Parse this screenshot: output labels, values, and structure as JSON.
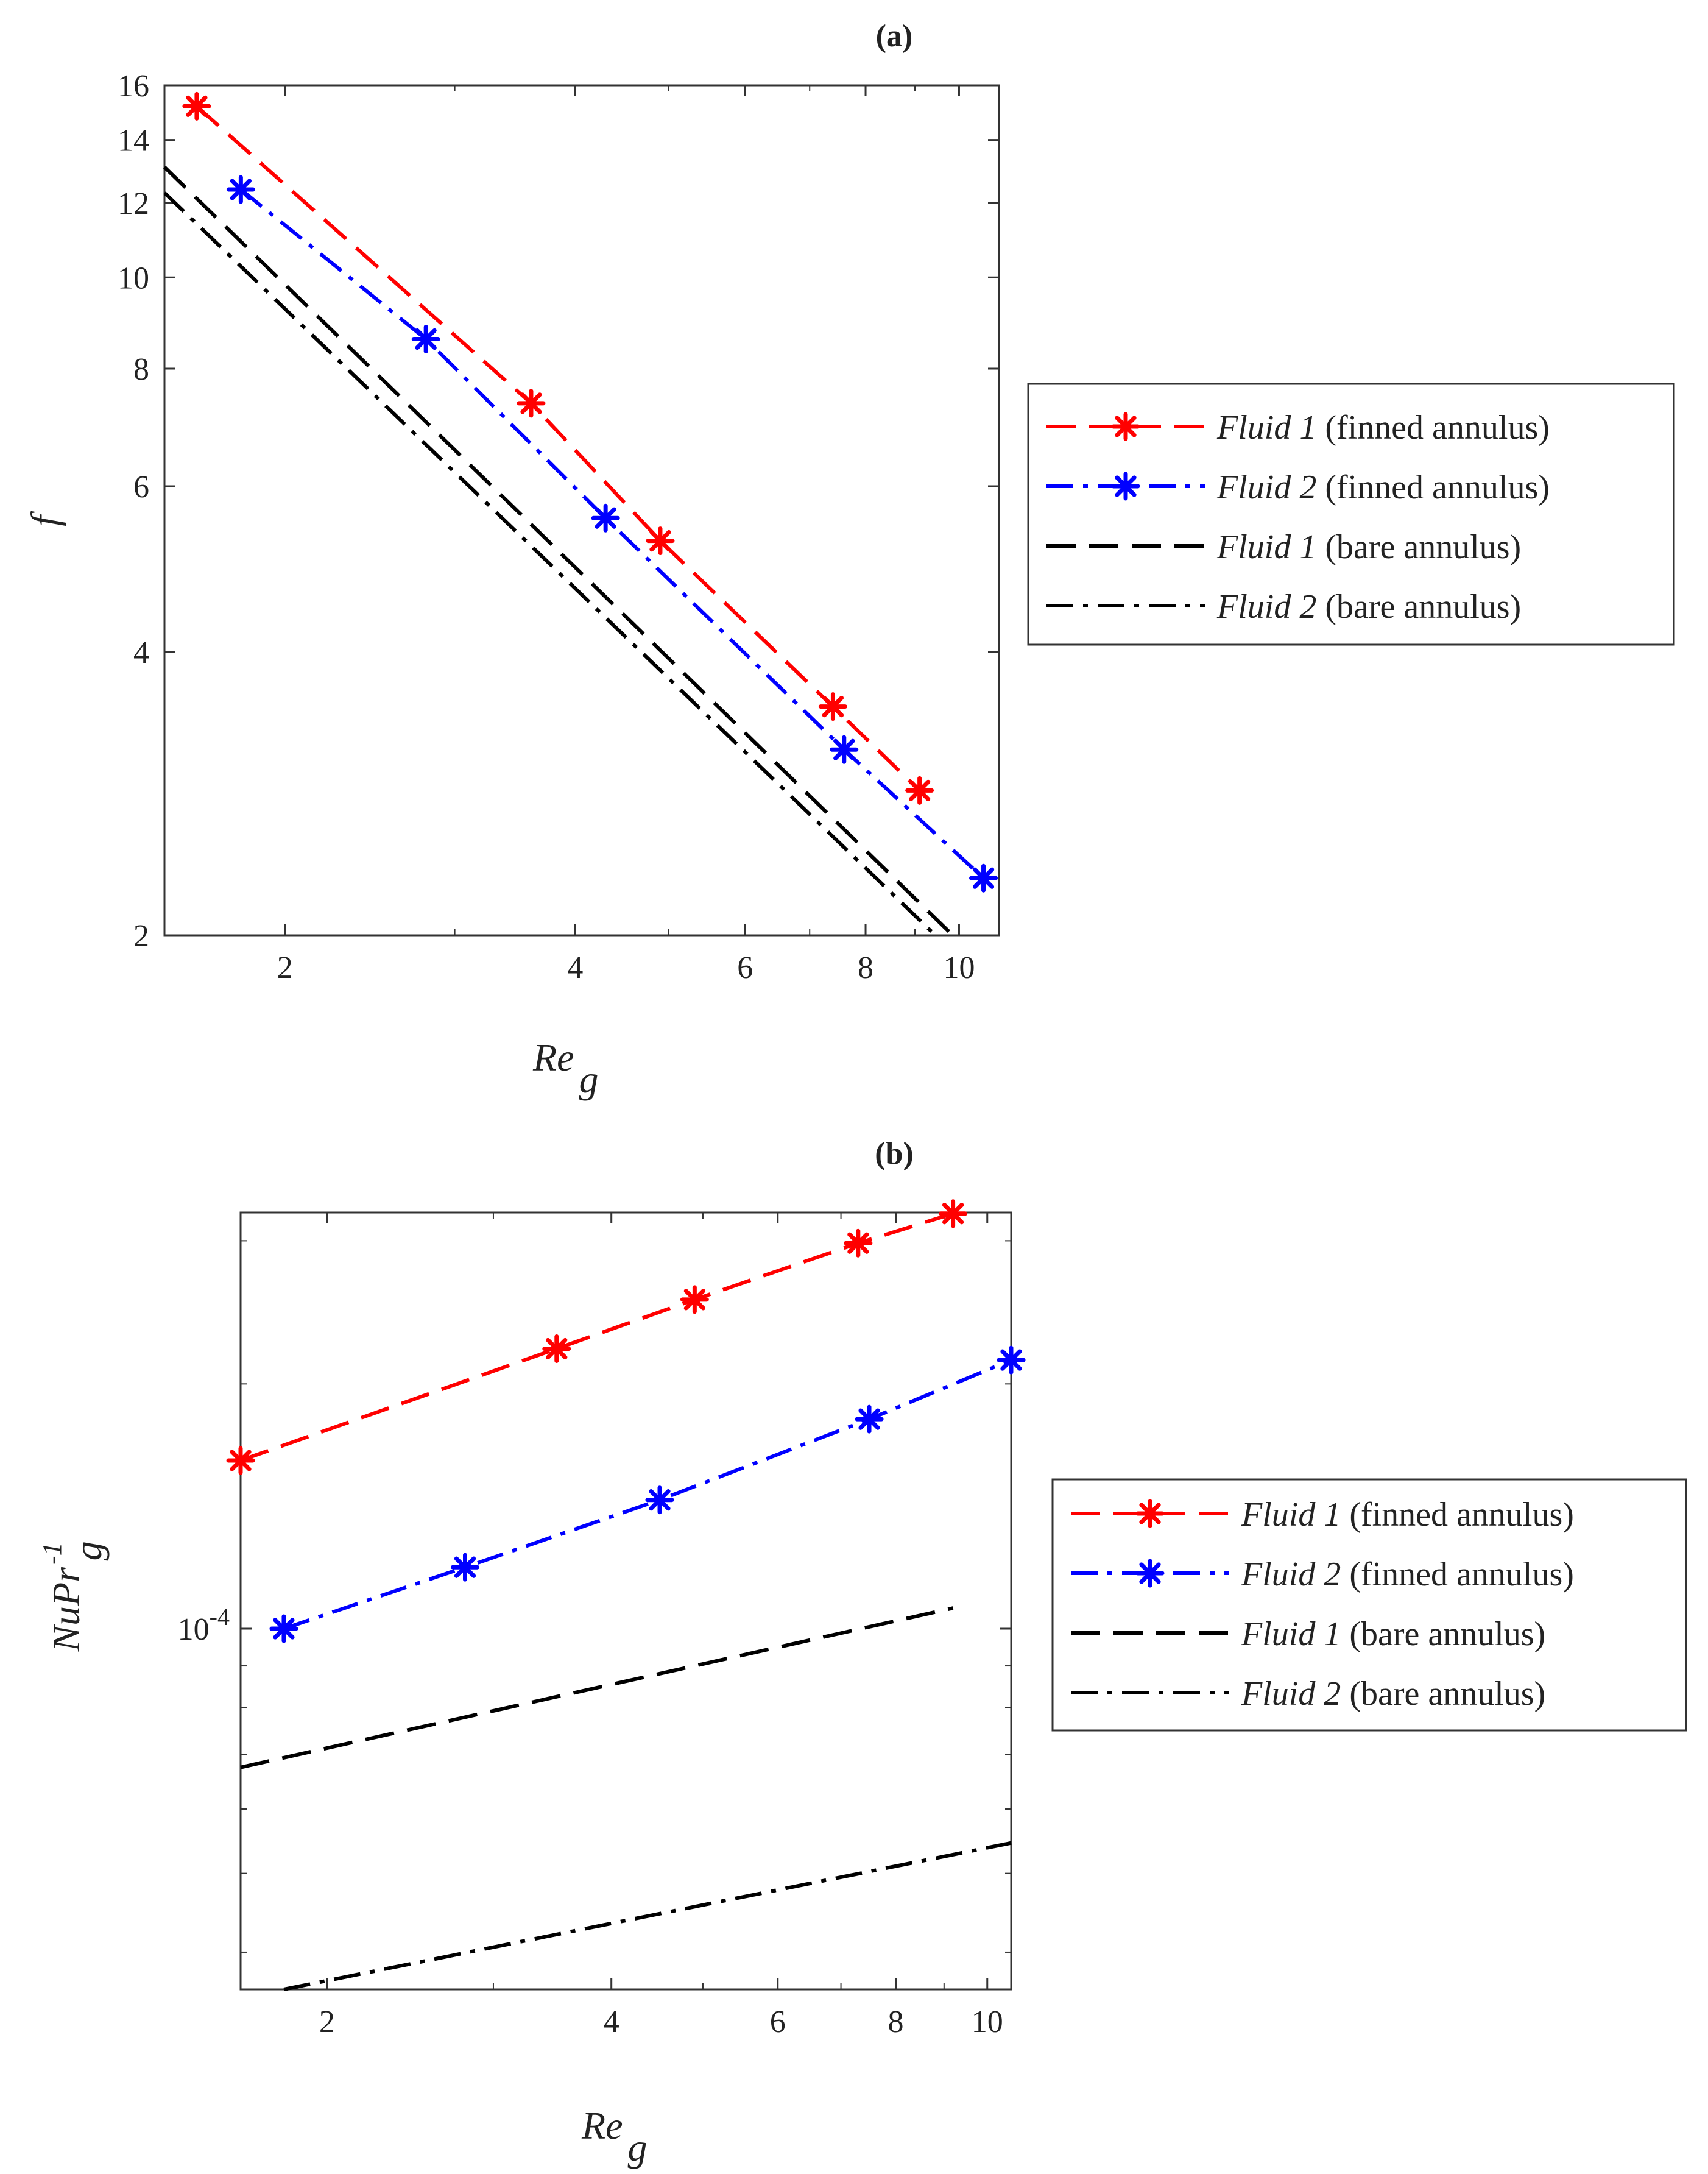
{
  "charts": [
    {
      "id": "a",
      "panel_label": "(a)",
      "ylabel": "f",
      "xlabel": {
        "base": "Re",
        "sub": "g"
      }
    },
    {
      "id": "b",
      "panel_label": "(b)",
      "ylabel": {
        "base": "NuPr",
        "sup": "-1",
        "sub": "g"
      },
      "xlabel": {
        "base": "Re",
        "sub": "g"
      }
    }
  ],
  "chart_data": [
    {
      "type": "line",
      "panel": "(a)",
      "title": "",
      "xlabel": "Re_g",
      "ylabel": "f",
      "xscale": "log",
      "yscale": "log",
      "xlim": [
        1.5,
        11.0
      ],
      "ylim": [
        2,
        16
      ],
      "grid": false,
      "legend_position": "outside-right",
      "xticks": [
        2,
        4,
        6,
        8,
        10
      ],
      "xtick_labels": [
        "2",
        "4",
        "6",
        "8",
        "10"
      ],
      "yticks": [
        2,
        4,
        6,
        8,
        10,
        12,
        14,
        16
      ],
      "ytick_labels": [
        "2",
        "4",
        "6",
        "8",
        "10",
        "12",
        "14",
        "16"
      ],
      "series": [
        {
          "name": "Fluid 1 (finned annulus)",
          "name_italic": "Fluid 1",
          "name_rest": " (finned annulus)",
          "color": "#ff0000",
          "line_style": "dashed",
          "marker": "asterisk",
          "x": [
            1.62,
            3.6,
            4.9,
            7.4,
            9.1
          ],
          "y": [
            15.2,
            7.35,
            5.25,
            3.5,
            2.85
          ]
        },
        {
          "name": "Fluid 2 (finned annulus)",
          "name_italic": "Fluid 2",
          "name_rest": " (finned annulus)",
          "color": "#0000ff",
          "line_style": "dashdot",
          "marker": "asterisk",
          "x": [
            1.8,
            2.8,
            4.3,
            7.6,
            10.6
          ],
          "y": [
            12.4,
            8.6,
            5.55,
            3.15,
            2.3
          ]
        },
        {
          "name": "Fluid 1 (bare annulus)",
          "name_italic": "Fluid 1",
          "name_rest": " (bare annulus)",
          "color": "#000000",
          "line_style": "dashed",
          "marker": "none",
          "x": [
            1.5,
            9.85
          ],
          "y": [
            13.1,
            2.0
          ]
        },
        {
          "name": "Fluid 2 (bare annulus)",
          "name_italic": "Fluid 2",
          "name_rest": " (bare annulus)",
          "color": "#000000",
          "line_style": "dashdot",
          "marker": "none",
          "x": [
            1.5,
            9.45
          ],
          "y": [
            12.3,
            2.0
          ]
        }
      ]
    },
    {
      "type": "line",
      "panel": "(b)",
      "title": "",
      "xlabel": "Re_g",
      "ylabel": "NuPr^-1_g",
      "xscale": "log",
      "yscale": "log",
      "xlim": [
        1.62,
        10.6
      ],
      "ylim": [
        3.6e-05,
        0.000325
      ],
      "grid": false,
      "legend_position": "outside-right",
      "xticks": [
        2,
        4,
        6,
        8,
        10
      ],
      "xtick_labels": [
        "2",
        "4",
        "6",
        "8",
        "10"
      ],
      "yticks": [
        0.0001
      ],
      "ytick_labels": [
        {
          "base": "10",
          "sup": "-4"
        }
      ],
      "series": [
        {
          "name": "Fluid 1 (finned annulus)",
          "name_italic": "Fluid 1",
          "name_rest": " (finned annulus)",
          "color": "#ff0000",
          "line_style": "dashed",
          "marker": "asterisk",
          "x": [
            1.62,
            3.5,
            4.9,
            7.3,
            9.2
          ],
          "y": [
            0.000161,
            0.000221,
            0.000254,
            0.000298,
            0.000324
          ]
        },
        {
          "name": "Fluid 2 (finned annulus)",
          "name_italic": "Fluid 2",
          "name_rest": " (finned annulus)",
          "color": "#0000ff",
          "line_style": "dashdot",
          "marker": "asterisk",
          "x": [
            1.8,
            2.8,
            4.5,
            7.5,
            10.6
          ],
          "y": [
            0.0001,
            0.000119,
            0.000144,
            0.000181,
            0.000214
          ]
        },
        {
          "name": "Fluid 1 (bare annulus)",
          "name_italic": "Fluid 1",
          "name_rest": " (bare annulus)",
          "color": "#000000",
          "line_style": "dashed",
          "marker": "none",
          "x": [
            1.62,
            9.2
          ],
          "y": [
            6.75e-05,
            0.000106
          ]
        },
        {
          "name": "Fluid 2 (bare annulus)",
          "name_italic": "Fluid 2",
          "name_rest": " (bare annulus)",
          "color": "#000000",
          "line_style": "dashdot",
          "marker": "none",
          "x": [
            1.8,
            10.6
          ],
          "y": [
            3.6e-05,
            5.45e-05
          ]
        }
      ]
    }
  ]
}
